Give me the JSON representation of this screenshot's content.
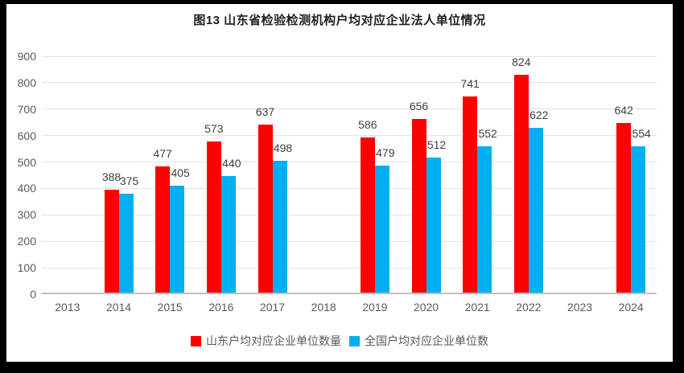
{
  "title": "图13 山东省检验检测机构户均对应企业法人单位情况",
  "chart_data": {
    "type": "bar",
    "categories": [
      "2013",
      "2014",
      "2015",
      "2016",
      "2017",
      "2018",
      "2019",
      "2020",
      "2021",
      "2022",
      "2023",
      "2024"
    ],
    "series": [
      {
        "name": "山东户均对应企业单位数量",
        "color": "#fe0000",
        "values": [
          null,
          388,
          477,
          573,
          637,
          null,
          586,
          656,
          741,
          824,
          null,
          642
        ]
      },
      {
        "name": "全国户均对应企业单位数",
        "color": "#00b0f0",
        "values": [
          null,
          375,
          405,
          440,
          498,
          null,
          479,
          512,
          552,
          622,
          null,
          554
        ]
      }
    ],
    "xlabel": "",
    "ylabel": "",
    "ylim": [
      0,
      900
    ],
    "ytick_step": 100,
    "grid": true,
    "legend_position": "bottom"
  },
  "colors": {
    "bar_shandong": "#fe0000",
    "bar_national": "#00b0f0",
    "gridline": "#e2e2e2",
    "axis_line": "#bfbfbf",
    "axis_label": "#595959",
    "value_label": "#3f3f3f",
    "title_text": "#1f1f1f",
    "frame": "#000000",
    "background": "#ffffff"
  }
}
